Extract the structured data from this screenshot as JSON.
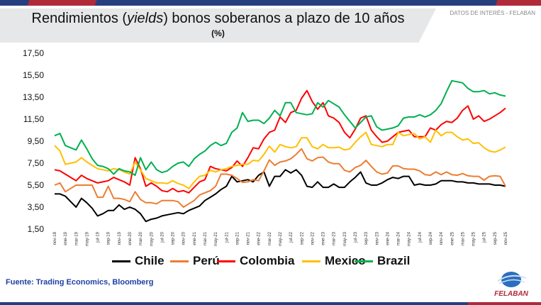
{
  "header": {
    "title_pre": "Rendimientos (",
    "title_italic": "yields",
    "title_post": ") bonos soberanos a plazo de 10 años",
    "subtitle": "(%)",
    "tag": "DATOS DE INTERÉS - FELABAN"
  },
  "footer": {
    "source": "Fuente: Trading Economics, Bloomberg",
    "logo_text": "FELABAN"
  },
  "chart_data": {
    "type": "line",
    "title": "Rendimientos (yields) bonos soberanos a plazo de 10 años",
    "ylabel": "%",
    "ylim": [
      1.5,
      17.5
    ],
    "yticks": [
      "1,50",
      "3,50",
      "5,50",
      "7,50",
      "9,50",
      "11,50",
      "13,50",
      "15,50",
      "17,50"
    ],
    "ytick_values": [
      1.5,
      3.5,
      5.5,
      7.5,
      9.5,
      11.5,
      13.5,
      15.5,
      17.5
    ],
    "xtick_labels": [
      "nov-18",
      "ene-19",
      "mar-19",
      "may-19",
      "jul-19",
      "sep-19",
      "nov-19",
      "ene-20",
      "mar-20",
      "may-20",
      "jul-20",
      "sep-20",
      "nov-20",
      "ene-21",
      "mar-21",
      "may-21",
      "jul-21",
      "sep-21",
      "nov-21",
      "ene-22",
      "mar-22",
      "may-22",
      "jul-22",
      "sep-22",
      "nov-22",
      "ene-23",
      "mar-23",
      "may-23",
      "jul-23",
      "sep-23",
      "nov-23",
      "ene-24",
      "mar-24",
      "may-24",
      "jul-24",
      "sep-24",
      "nov-24",
      "ene-25",
      "mar-25",
      "may-25",
      "jul-25",
      "sep-25",
      "nov-25"
    ],
    "x_period": "monthly, nov-18 to nov-25",
    "legend_position": "bottom",
    "grid": false,
    "series": [
      {
        "name": "Chile",
        "color": "#000000",
        "values": [
          4.7,
          4.7,
          4.5,
          4.0,
          3.5,
          4.3,
          3.9,
          3.4,
          2.7,
          2.9,
          3.2,
          3.2,
          3.7,
          3.3,
          3.5,
          3.3,
          2.9,
          2.2,
          2.4,
          2.5,
          2.7,
          2.8,
          2.9,
          3.0,
          2.9,
          3.2,
          3.4,
          3.6,
          4.1,
          4.4,
          4.7,
          5.1,
          5.4,
          6.3,
          5.8,
          5.9,
          6.0,
          5.8,
          6.4,
          6.7,
          5.4,
          6.3,
          6.3,
          6.9,
          6.6,
          6.9,
          6.4,
          5.4,
          5.3,
          5.8,
          5.3,
          5.3,
          5.6,
          5.3,
          5.3,
          5.8,
          6.2,
          6.7,
          5.7,
          5.5,
          5.5,
          5.7,
          6.0,
          6.2,
          6.1,
          6.3,
          6.3,
          5.5,
          5.6,
          5.5,
          5.5,
          5.6,
          5.9,
          5.9,
          5.9,
          5.8,
          5.8,
          5.7,
          5.7,
          5.6,
          5.6,
          5.6,
          5.5,
          5.5,
          5.4
        ]
      },
      {
        "name": "Perú",
        "color": "#ed7d31",
        "values": [
          5.5,
          5.7,
          4.9,
          5.2,
          5.5,
          5.5,
          5.5,
          5.5,
          4.4,
          4.4,
          5.4,
          4.3,
          4.3,
          4.2,
          4.0,
          4.9,
          4.2,
          3.9,
          3.9,
          3.8,
          4.1,
          4.1,
          4.1,
          4.0,
          3.5,
          3.8,
          4.1,
          4.6,
          4.8,
          5.0,
          5.4,
          6.5,
          6.5,
          6.4,
          6.1,
          5.75,
          5.8,
          6.0,
          5.9,
          6.8,
          7.8,
          7.3,
          7.6,
          7.7,
          7.9,
          8.3,
          8.8,
          7.9,
          7.7,
          8.0,
          8.05,
          7.6,
          7.45,
          7.45,
          6.85,
          6.7,
          7.1,
          7.3,
          7.75,
          7.2,
          6.7,
          6.5,
          6.6,
          7.25,
          7.25,
          7.0,
          6.95,
          6.95,
          6.8,
          6.45,
          6.4,
          6.7,
          6.45,
          6.7,
          6.45,
          6.4,
          6.55,
          6.35,
          6.3,
          6.3,
          5.95,
          6.3,
          6.35,
          6.3,
          5.4
        ]
      },
      {
        "name": "Colombia",
        "color": "#ff0000",
        "values": [
          6.9,
          6.8,
          6.5,
          6.2,
          5.9,
          6.4,
          6.1,
          5.9,
          5.7,
          5.8,
          5.9,
          6.2,
          6.0,
          5.8,
          5.5,
          8.0,
          7.0,
          5.4,
          5.7,
          5.4,
          5.0,
          4.9,
          5.2,
          4.9,
          5.0,
          4.8,
          5.3,
          5.8,
          6.0,
          7.2,
          7.0,
          6.9,
          6.8,
          7.1,
          7.7,
          7.2,
          8.0,
          8.9,
          8.8,
          9.7,
          10.3,
          10.5,
          11.7,
          11.2,
          12.1,
          12.3,
          13.4,
          14.1,
          13.1,
          12.4,
          13.0,
          11.8,
          11.6,
          11.2,
          10.3,
          9.8,
          10.6,
          11.6,
          11.8,
          10.5,
          9.9,
          9.4,
          9.5,
          9.9,
          10.3,
          10.4,
          10.5,
          9.9,
          9.9,
          9.9,
          10.7,
          10.5,
          11.0,
          11.3,
          11.2,
          11.6,
          12.3,
          12.7,
          11.5,
          11.8,
          11.3,
          11.5,
          11.8,
          12.1,
          12.5
        ]
      },
      {
        "name": "Mexico",
        "color": "#ffc000",
        "values": [
          9.1,
          8.6,
          7.4,
          7.5,
          7.6,
          8.0,
          7.6,
          7.3,
          7.0,
          6.9,
          6.8,
          7.0,
          6.9,
          6.7,
          6.5,
          7.6,
          6.9,
          6.1,
          5.9,
          5.7,
          5.7,
          5.65,
          5.9,
          5.65,
          5.5,
          5.2,
          5.8,
          6.3,
          6.4,
          6.85,
          6.7,
          6.9,
          7.0,
          7.2,
          7.3,
          7.4,
          7.4,
          7.75,
          7.7,
          8.3,
          9.05,
          8.5,
          9.2,
          9.0,
          8.9,
          9.0,
          9.8,
          9.8,
          9.0,
          8.8,
          9.2,
          8.9,
          8.9,
          8.95,
          8.7,
          8.8,
          9.4,
          9.9,
          10.3,
          9.2,
          9.1,
          9.0,
          9.2,
          9.2,
          10.3,
          10.0,
          10.1,
          10.2,
          9.7,
          9.9,
          9.4,
          10.5,
          10.0,
          10.3,
          10.3,
          9.9,
          9.6,
          9.7,
          9.3,
          9.35,
          8.9,
          8.6,
          8.5,
          8.7,
          8.95
        ]
      },
      {
        "name": "Brazil",
        "color": "#00b050",
        "values": [
          10.0,
          10.2,
          9.1,
          8.9,
          8.7,
          9.6,
          8.8,
          7.9,
          7.3,
          7.2,
          7.0,
          6.5,
          7.0,
          6.8,
          6.7,
          6.4,
          8.0,
          6.9,
          7.6,
          6.9,
          6.65,
          6.8,
          7.2,
          7.5,
          7.6,
          7.2,
          7.9,
          8.3,
          8.6,
          9.1,
          9.4,
          9.1,
          9.3,
          10.3,
          10.7,
          12.1,
          11.3,
          11.4,
          11.4,
          11.1,
          11.6,
          12.3,
          11.8,
          13.0,
          13.0,
          12.1,
          12.0,
          11.9,
          12.0,
          13.0,
          12.6,
          13.2,
          12.9,
          12.6,
          11.9,
          11.3,
          10.7,
          11.2,
          11.7,
          11.8,
          10.8,
          10.5,
          10.6,
          10.7,
          10.9,
          11.6,
          11.7,
          11.7,
          11.9,
          11.7,
          11.9,
          12.3,
          12.9,
          14.0,
          15.0,
          14.9,
          14.8,
          14.3,
          14.0,
          14.0,
          14.1,
          13.8,
          13.9,
          13.7,
          13.6
        ]
      }
    ]
  }
}
